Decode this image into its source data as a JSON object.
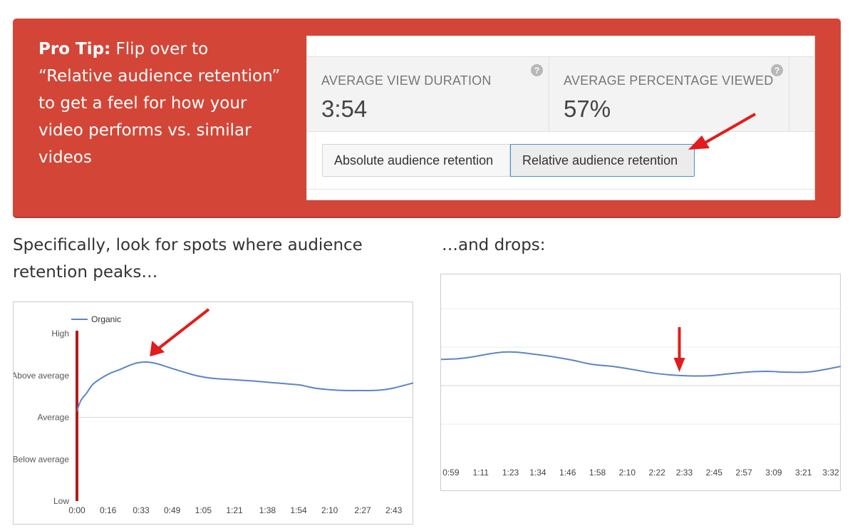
{
  "tip": {
    "bold": "Pro Tip:",
    "text": " Flip over to “Relative audience retention” to get a feel for how your video performs vs. similar videos"
  },
  "metrics": [
    {
      "label": "AVERAGE VIEW DURATION",
      "value": "3:54"
    },
    {
      "label": "AVERAGE PERCENTAGE VIEWED",
      "value": "57%"
    }
  ],
  "toggle": {
    "absolute_label": "Absolute audience retention",
    "relative_label": "Relative audience retention",
    "selected": "relative"
  },
  "captions": {
    "left": "Specifically, look for spots where audience retention peaks…",
    "right": "…and drops:"
  },
  "colors": {
    "banner": "#d34637",
    "series": "#5b86c5",
    "arrow": "#e21c1c",
    "start_marker": "#b31b1b"
  },
  "chart_data": [
    {
      "type": "line",
      "title": "",
      "legend": "Organic",
      "legend_position": "top-left",
      "y_categories": [
        "Low",
        "Below average",
        "Average",
        "Above average",
        "High"
      ],
      "ylim": [
        0,
        4
      ],
      "x_ticks": [
        "0:00",
        "0:16",
        "0:33",
        "0:49",
        "1:05",
        "1:21",
        "1:38",
        "1:54",
        "2:10",
        "2:27",
        "2:43"
      ],
      "x_tick_seconds": [
        0,
        16,
        33,
        49,
        65,
        81,
        98,
        114,
        130,
        147,
        163
      ],
      "xlim": [
        0,
        173
      ],
      "series": [
        {
          "name": "Organic",
          "x": [
            0,
            2,
            5,
            8,
            12,
            17,
            22,
            27,
            31,
            35,
            38,
            42,
            48,
            55,
            62,
            70,
            80,
            90,
            100,
            108,
            115,
            122,
            130,
            138,
            145,
            152,
            158,
            163,
            168,
            173
          ],
          "y": [
            2.15,
            2.4,
            2.58,
            2.78,
            2.92,
            3.05,
            3.14,
            3.24,
            3.3,
            3.32,
            3.31,
            3.27,
            3.18,
            3.08,
            2.99,
            2.93,
            2.9,
            2.87,
            2.83,
            2.8,
            2.77,
            2.7,
            2.66,
            2.64,
            2.64,
            2.64,
            2.66,
            2.7,
            2.76,
            2.82
          ]
        }
      ],
      "annotation": {
        "type": "arrow",
        "target_x": 36,
        "target_y": 3.3
      }
    },
    {
      "type": "line",
      "title": "",
      "legend": "",
      "x_ticks": [
        "0:59",
        "1:11",
        "1:23",
        "1:34",
        "1:46",
        "1:58",
        "2:10",
        "2:22",
        "2:33",
        "2:45",
        "2:57",
        "3:09",
        "3:21",
        "3:32"
      ],
      "x_tick_seconds": [
        59,
        71,
        83,
        94,
        106,
        118,
        130,
        142,
        153,
        165,
        177,
        189,
        201,
        212
      ],
      "xlim": [
        55,
        216
      ],
      "ylim": [
        0,
        4
      ],
      "series": [
        {
          "name": "Organic",
          "x": [
            55,
            62,
            68,
            74,
            80,
            85,
            92,
            100,
            108,
            116,
            124,
            132,
            140,
            147,
            152,
            158,
            164,
            170,
            178,
            186,
            194,
            202,
            208,
            216
          ],
          "y": [
            2.68,
            2.7,
            2.75,
            2.82,
            2.87,
            2.87,
            2.82,
            2.75,
            2.66,
            2.55,
            2.5,
            2.42,
            2.33,
            2.28,
            2.26,
            2.25,
            2.26,
            2.3,
            2.35,
            2.37,
            2.35,
            2.35,
            2.4,
            2.5
          ]
        }
      ],
      "annotation": {
        "type": "arrow",
        "target_x": 151,
        "target_y": 2.26
      }
    }
  ]
}
